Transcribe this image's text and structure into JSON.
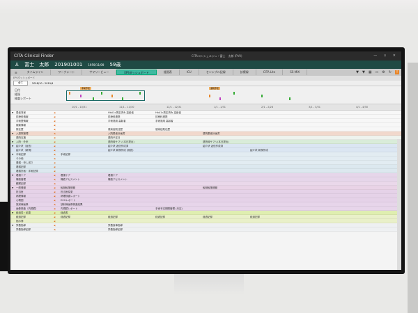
{
  "app": {
    "title": "CITA Clinical Finder",
    "window_center": "CITAコンシェルジュ : 富士　太郎 (PV0)"
  },
  "patient": {
    "name": "富士　太郎",
    "id": "201901001",
    "birth": "1959/11/09",
    "age": "59歳"
  },
  "tabs": [
    {
      "label": "タイムライン"
    },
    {
      "label": "ワークシート"
    },
    {
      "label": "サマリービュー"
    },
    {
      "label": "EPSダッシュボード",
      "active": true
    },
    {
      "label": "経過表"
    },
    {
      "label": "ICU"
    },
    {
      "label": "センシブル記録"
    },
    {
      "label": "診療録"
    },
    {
      "label": "CITA Lite"
    },
    {
      "label": "SS-MIX"
    }
  ],
  "sub": {
    "label": "EPSダッシュボード"
  },
  "toolbar": {
    "period": "全て",
    "range": "2018/10 - 2019/4"
  },
  "overview": {
    "labels": [
      "日付",
      "経過",
      "検査レポート"
    ],
    "tags": [
      "手術予定",
      "退院予定"
    ]
  },
  "dates": [
    "10/1 - 10/31",
    "11/1 - 11/30",
    "12/1 - 12/31",
    "1/1 - 1/31",
    "2/1 - 2/28",
    "3/1 - 3/31",
    "4/1 - 4/30"
  ],
  "colors": {
    "accent": "#3fb8a0",
    "patient_bar": "#1f4a44",
    "orange": "#e8862a"
  },
  "rows": [
    {
      "label": "患者背景",
      "group": true,
      "color": "#f7f7f7",
      "cells": [
        {
          "col": 1,
          "text": "HbA1c測定済み 高齢者"
        },
        {
          "col": 2,
          "text": "HbA1c測定済み 高齢者"
        }
      ]
    },
    {
      "label": "診療科情報",
      "color": "#f7f7f7",
      "cells": [
        {
          "col": 1,
          "text": "診療科連携"
        },
        {
          "col": 2,
          "text": "診療科連携"
        }
      ]
    },
    {
      "label": "手術歴情報",
      "color": "#f7f7f7",
      "cells": [
        {
          "col": 1,
          "text": "手術適用 高齢者"
        },
        {
          "col": 2,
          "text": "手術適用 高齢者"
        }
      ]
    },
    {
      "label": "服薬情報",
      "color": "#f7f7f7",
      "cells": []
    },
    {
      "label": "既往歴",
      "color": "#f7f7f7",
      "cells": [
        {
          "col": 1,
          "text": "感染症既往歴"
        },
        {
          "col": 2,
          "text": "感染症既往歴"
        }
      ]
    },
    {
      "label": "入退院管理",
      "group": true,
      "color": "#f1d8cc",
      "cells": [
        {
          "col": 1,
          "text": "入院患者計画書"
        },
        {
          "col": 3,
          "text": "退院患者計画書"
        }
      ]
    },
    {
      "label": "退院支援",
      "color": "#eef3ee",
      "cells": [
        {
          "col": 1,
          "text": "退院予定日"
        }
      ]
    },
    {
      "label": "入院・外来",
      "group": true,
      "color": "#d9ecd9",
      "cells": [
        {
          "col": 1,
          "text": "退院時サマリ(本日提出)"
        },
        {
          "col": 3,
          "text": "退院時サマリ(本日提出)"
        }
      ]
    },
    {
      "label": "紹介状（返信）",
      "group": true,
      "color": "#dbe6f2",
      "cells": [
        {
          "col": 1,
          "text": "紹介状 返信作成済"
        },
        {
          "col": 3,
          "text": "紹介状 返信作成済"
        }
      ]
    },
    {
      "label": "紹介状（新規）",
      "color": "#dbe6f2",
      "cells": [
        {
          "col": 1,
          "text": "紹介状 新規作成 (既読)"
        },
        {
          "col": 4,
          "text": "紹介状 新規作成"
        }
      ]
    },
    {
      "label": "手術記録",
      "group": true,
      "color": "#e2ecf2",
      "cells": [
        {
          "col": 0,
          "text": "手術記録"
        }
      ]
    },
    {
      "label": "その他",
      "color": "#e2ecf2",
      "cells": []
    },
    {
      "label": "看護・申し送り",
      "color": "#e2ecf2",
      "cells": []
    },
    {
      "label": "看護記録",
      "color": "#dce8ef",
      "cells": []
    },
    {
      "label": "看護計画・手術記録",
      "color": "#dce8ef",
      "cells": []
    },
    {
      "label": "看護ケア",
      "group": true,
      "color": "#e6d6ea",
      "cells": [
        {
          "col": 0,
          "text": "看護ケア"
        },
        {
          "col": 1,
          "text": "看護ケア"
        }
      ]
    },
    {
      "label": "褥瘡管理",
      "color": "#e6d6ea",
      "cells": [
        {
          "col": 0,
          "text": "褥瘡アセスメント"
        },
        {
          "col": 1,
          "text": "褥瘡アセスメント"
        }
      ]
    },
    {
      "label": "観察記録",
      "color": "#ead8ea",
      "cells": []
    },
    {
      "label": "一般情報",
      "group": true,
      "color": "#e9d3e6",
      "cells": [
        {
          "col": 0,
          "text": "転倒転落情報"
        },
        {
          "col": 3,
          "text": "転倒転落情報"
        }
      ]
    },
    {
      "label": "担当医",
      "color": "#e5d2e8",
      "cells": [
        {
          "col": 0,
          "text": "担当医変更"
        }
      ]
    },
    {
      "label": "病理情報",
      "color": "#e5d2e8",
      "cells": [
        {
          "col": 0,
          "text": "病理検査レポート"
        }
      ]
    },
    {
      "label": "心電図",
      "color": "#e5d2e8",
      "cells": [
        {
          "col": 0,
          "text": "ECGレポート"
        }
      ]
    },
    {
      "label": "放射線画像",
      "color": "#e7d5ea",
      "cells": [
        {
          "col": 0,
          "text": "放射線画像検査結果"
        }
      ]
    },
    {
      "label": "画像検査（内視鏡）",
      "color": "#e7d5ea",
      "cells": [
        {
          "col": 0,
          "text": "内視鏡レポート"
        },
        {
          "col": 2,
          "text": "手術予定期間管理 (未定)"
        }
      ]
    },
    {
      "label": "経過表・処置",
      "group": true,
      "color": "#dfeeb0",
      "cells": [
        {
          "col": 0,
          "text": "経過表"
        }
      ]
    },
    {
      "label": "経過記録",
      "color": "#e9f0c9",
      "cells": [
        {
          "col": 0,
          "text": "経過記録"
        },
        {
          "col": 1,
          "text": "経過記録"
        },
        {
          "col": 2,
          "text": "経過記録"
        },
        {
          "col": 3,
          "text": "経過記録"
        },
        {
          "col": 4,
          "text": "経過記録"
        }
      ]
    },
    {
      "label": "指示簿",
      "color": "#e9f0c9",
      "cells": []
    },
    {
      "label": "栄養指導",
      "group": true,
      "color": "#eef0f2",
      "cells": [
        {
          "col": 1,
          "text": "栄養食事指導"
        }
      ]
    },
    {
      "label": "栄養指導記録",
      "color": "#eef0f2",
      "cells": [
        {
          "col": 1,
          "text": "栄養指導記録"
        }
      ]
    }
  ]
}
